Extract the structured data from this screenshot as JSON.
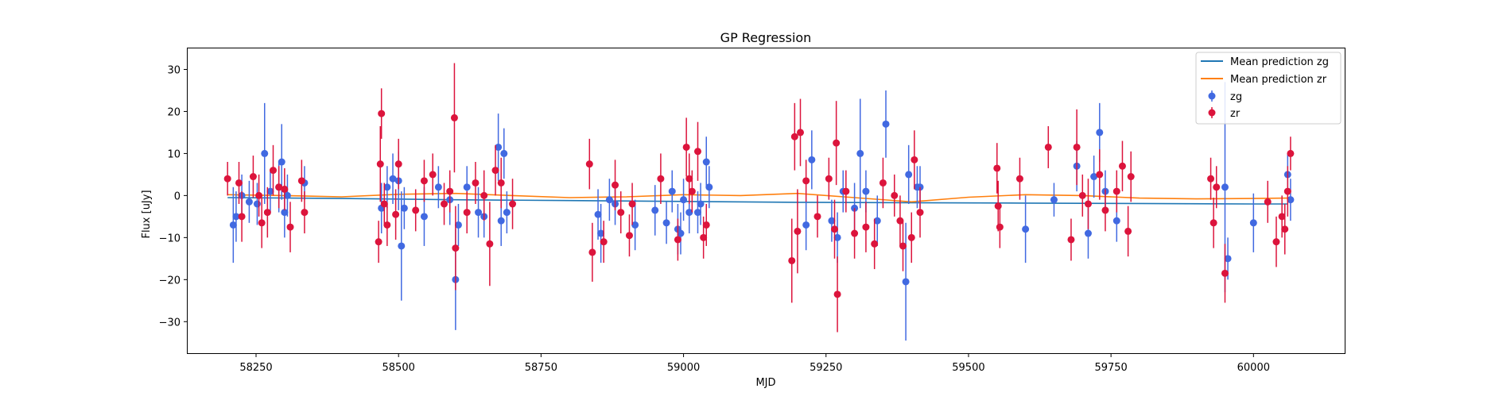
{
  "chart_data": {
    "type": "scatter",
    "title": "GP Regression",
    "xlabel": "MJD",
    "ylabel": "Flux [uJy]",
    "xlim": [
      58130,
      60160
    ],
    "ylim": [
      -37.5,
      35
    ],
    "xticks": [
      58250,
      58500,
      58750,
      59000,
      59250,
      59500,
      59750,
      60000
    ],
    "yticks": [
      -30,
      -20,
      -10,
      0,
      10,
      20,
      30
    ],
    "ytick_labels": [
      "−30",
      "−20",
      "−10",
      "0",
      "10",
      "20",
      "30"
    ],
    "legend": {
      "placement": "top-right",
      "entries": [
        "Mean prediction zg",
        "Mean prediction zr",
        "zg",
        "zr"
      ]
    },
    "series": [
      {
        "name": "Mean prediction zg",
        "kind": "line",
        "color": "#1f77b4",
        "x": [
          58200,
          58400,
          58600,
          58800,
          59000,
          59200,
          59400,
          59600,
          59800,
          60000,
          60060
        ],
        "y": [
          -0.5,
          -0.7,
          -1.0,
          -1.2,
          -1.4,
          -1.6,
          -1.7,
          -1.8,
          -1.9,
          -2.0,
          -2.0
        ]
      },
      {
        "name": "Mean prediction zr",
        "kind": "line",
        "color": "#ff7f0e",
        "x": [
          58200,
          58300,
          58400,
          58500,
          58600,
          58700,
          58800,
          58900,
          59000,
          59100,
          59200,
          59300,
          59400,
          59500,
          59600,
          59700,
          59800,
          59900,
          60000,
          60060
        ],
        "y": [
          0.2,
          0.0,
          -0.3,
          0.3,
          0.5,
          0.0,
          -0.5,
          -0.3,
          0.2,
          0.0,
          0.5,
          -0.5,
          -1.5,
          -0.4,
          0.2,
          0.0,
          -0.6,
          -0.8,
          -0.7,
          -0.6
        ]
      },
      {
        "name": "zg",
        "kind": "errorbar",
        "color": "#4169e1",
        "points": [
          [
            58210,
            -7,
            9
          ],
          [
            58215,
            -5,
            6
          ],
          [
            58225,
            0,
            5
          ],
          [
            58238,
            -1.5,
            5
          ],
          [
            58252,
            -2,
            5
          ],
          [
            58265,
            10,
            12
          ],
          [
            58275,
            1,
            5
          ],
          [
            58290,
            2,
            6
          ],
          [
            58295,
            8,
            9
          ],
          [
            58300,
            -4,
            6
          ],
          [
            58305,
            0,
            5
          ],
          [
            58335,
            3,
            4
          ],
          [
            58470,
            -3,
            6
          ],
          [
            58480,
            2,
            5
          ],
          [
            58490,
            4,
            6
          ],
          [
            58500,
            3.5,
            7
          ],
          [
            58505,
            -12,
            13
          ],
          [
            58510,
            -3,
            5
          ],
          [
            58545,
            -5,
            7
          ],
          [
            58570,
            2,
            5
          ],
          [
            58590,
            -1,
            6
          ],
          [
            58600,
            -20,
            12
          ],
          [
            58605,
            -7,
            5
          ],
          [
            58620,
            2,
            5
          ],
          [
            58640,
            -4,
            6
          ],
          [
            58650,
            -5,
            5
          ],
          [
            58675,
            11.5,
            8
          ],
          [
            58680,
            -6,
            6
          ],
          [
            58685,
            10,
            6
          ],
          [
            58690,
            -4,
            5
          ],
          [
            58850,
            -4.5,
            6
          ],
          [
            58855,
            -9,
            7
          ],
          [
            58870,
            -1,
            5
          ],
          [
            58880,
            -2,
            5
          ],
          [
            58915,
            -7,
            6
          ],
          [
            58950,
            -3.5,
            6
          ],
          [
            58970,
            -6.5,
            5
          ],
          [
            58980,
            1,
            5
          ],
          [
            58990,
            -8,
            6
          ],
          [
            58995,
            -9,
            5
          ],
          [
            59000,
            -1,
            5
          ],
          [
            59010,
            -4,
            5
          ],
          [
            59025,
            -4,
            5
          ],
          [
            59030,
            -2,
            5
          ],
          [
            59040,
            8,
            6
          ],
          [
            59045,
            2,
            5
          ],
          [
            59215,
            -7,
            6
          ],
          [
            59225,
            8.5,
            7
          ],
          [
            59260,
            -6,
            5
          ],
          [
            59270,
            -10,
            6
          ],
          [
            59280,
            1,
            5
          ],
          [
            59300,
            -3,
            6
          ],
          [
            59310,
            10,
            13
          ],
          [
            59320,
            1,
            5
          ],
          [
            59340,
            -6,
            6
          ],
          [
            59355,
            17,
            8
          ],
          [
            59390,
            -20.5,
            14
          ],
          [
            59395,
            5,
            7
          ],
          [
            59410,
            2,
            5
          ],
          [
            59415,
            2,
            5
          ],
          [
            59600,
            -8,
            8
          ],
          [
            59650,
            -1,
            4
          ],
          [
            59690,
            7,
            6
          ],
          [
            59710,
            -9,
            6
          ],
          [
            59720,
            4.5,
            5
          ],
          [
            59730,
            15,
            7
          ],
          [
            59740,
            1,
            5
          ],
          [
            59760,
            -6,
            5
          ],
          [
            59950,
            2,
            25
          ],
          [
            59955,
            -15,
            5
          ],
          [
            60000,
            -6.5,
            7
          ],
          [
            60060,
            5,
            5
          ],
          [
            60065,
            -1,
            5
          ]
        ]
      },
      {
        "name": "zr",
        "kind": "errorbar",
        "color": "#dc143c",
        "points": [
          [
            58200,
            4,
            4
          ],
          [
            58220,
            3,
            5
          ],
          [
            58225,
            -5,
            6
          ],
          [
            58245,
            4.5,
            5
          ],
          [
            58255,
            0,
            5
          ],
          [
            58260,
            -6.5,
            6
          ],
          [
            58270,
            -4,
            6
          ],
          [
            58280,
            6,
            6
          ],
          [
            58290,
            2,
            5
          ],
          [
            58300,
            1.5,
            5
          ],
          [
            58310,
            -7.5,
            6
          ],
          [
            58330,
            3.5,
            5
          ],
          [
            58335,
            -4,
            5
          ],
          [
            58465,
            -11,
            5
          ],
          [
            58468,
            7.5,
            9
          ],
          [
            58470,
            19.5,
            6
          ],
          [
            58475,
            -2,
            5
          ],
          [
            58480,
            -7,
            5
          ],
          [
            58495,
            -4.5,
            6
          ],
          [
            58500,
            7.5,
            6
          ],
          [
            58530,
            -3.5,
            5
          ],
          [
            58545,
            3.5,
            5
          ],
          [
            58560,
            5,
            5
          ],
          [
            58580,
            -2,
            5
          ],
          [
            58590,
            1,
            5
          ],
          [
            58598,
            18.5,
            13
          ],
          [
            58600,
            -12.5,
            10
          ],
          [
            58620,
            -4,
            5
          ],
          [
            58635,
            3,
            5
          ],
          [
            58650,
            0,
            6
          ],
          [
            58660,
            -11.5,
            10
          ],
          [
            58670,
            6,
            6
          ],
          [
            58680,
            3,
            6
          ],
          [
            58700,
            -2,
            6
          ],
          [
            58835,
            7.5,
            6
          ],
          [
            58840,
            -13.5,
            7
          ],
          [
            58860,
            -11,
            5
          ],
          [
            58880,
            2.5,
            6
          ],
          [
            58890,
            -4,
            5
          ],
          [
            58905,
            -9.5,
            5
          ],
          [
            58910,
            -2,
            5
          ],
          [
            58960,
            4,
            6
          ],
          [
            58990,
            -10.5,
            5
          ],
          [
            59005,
            11.5,
            7
          ],
          [
            59010,
            4,
            6
          ],
          [
            59015,
            1,
            5
          ],
          [
            59025,
            10.5,
            7
          ],
          [
            59035,
            -10,
            5
          ],
          [
            59040,
            -7,
            5
          ],
          [
            59190,
            -15.5,
            10
          ],
          [
            59195,
            14,
            8
          ],
          [
            59200,
            -8.5,
            10
          ],
          [
            59205,
            15,
            8
          ],
          [
            59215,
            3.5,
            5
          ],
          [
            59235,
            -5,
            5
          ],
          [
            59255,
            4,
            5
          ],
          [
            59265,
            -8,
            7
          ],
          [
            59268,
            12.5,
            10
          ],
          [
            59270,
            -23.5,
            9
          ],
          [
            59285,
            1,
            5
          ],
          [
            59300,
            -9,
            6
          ],
          [
            59320,
            -7.5,
            6
          ],
          [
            59335,
            -11.5,
            6
          ],
          [
            59350,
            3,
            6
          ],
          [
            59370,
            0,
            5
          ],
          [
            59380,
            -6,
            6
          ],
          [
            59385,
            -12,
            6
          ],
          [
            59400,
            -10,
            6
          ],
          [
            59405,
            8.5,
            7
          ],
          [
            59415,
            -4,
            6
          ],
          [
            59550,
            6.5,
            6
          ],
          [
            59552,
            -2.5,
            6
          ],
          [
            59555,
            -7.5,
            5
          ],
          [
            59590,
            4,
            5
          ],
          [
            59640,
            11.5,
            5
          ],
          [
            59680,
            -10.5,
            5
          ],
          [
            59690,
            11.5,
            9
          ],
          [
            59700,
            0,
            5
          ],
          [
            59710,
            -2,
            6
          ],
          [
            59730,
            5,
            6
          ],
          [
            59740,
            -3.5,
            5
          ],
          [
            59760,
            1,
            5
          ],
          [
            59770,
            7,
            6
          ],
          [
            59780,
            -8.5,
            6
          ],
          [
            59785,
            4.5,
            6
          ],
          [
            59925,
            4,
            5
          ],
          [
            59930,
            -6.5,
            6
          ],
          [
            59935,
            2,
            5
          ],
          [
            59950,
            -18.5,
            7
          ],
          [
            60025,
            -1.5,
            5
          ],
          [
            60040,
            -11,
            6
          ],
          [
            60050,
            -5,
            5
          ],
          [
            60055,
            -8,
            6
          ],
          [
            60060,
            1,
            6
          ],
          [
            60065,
            10,
            4
          ]
        ]
      }
    ]
  }
}
